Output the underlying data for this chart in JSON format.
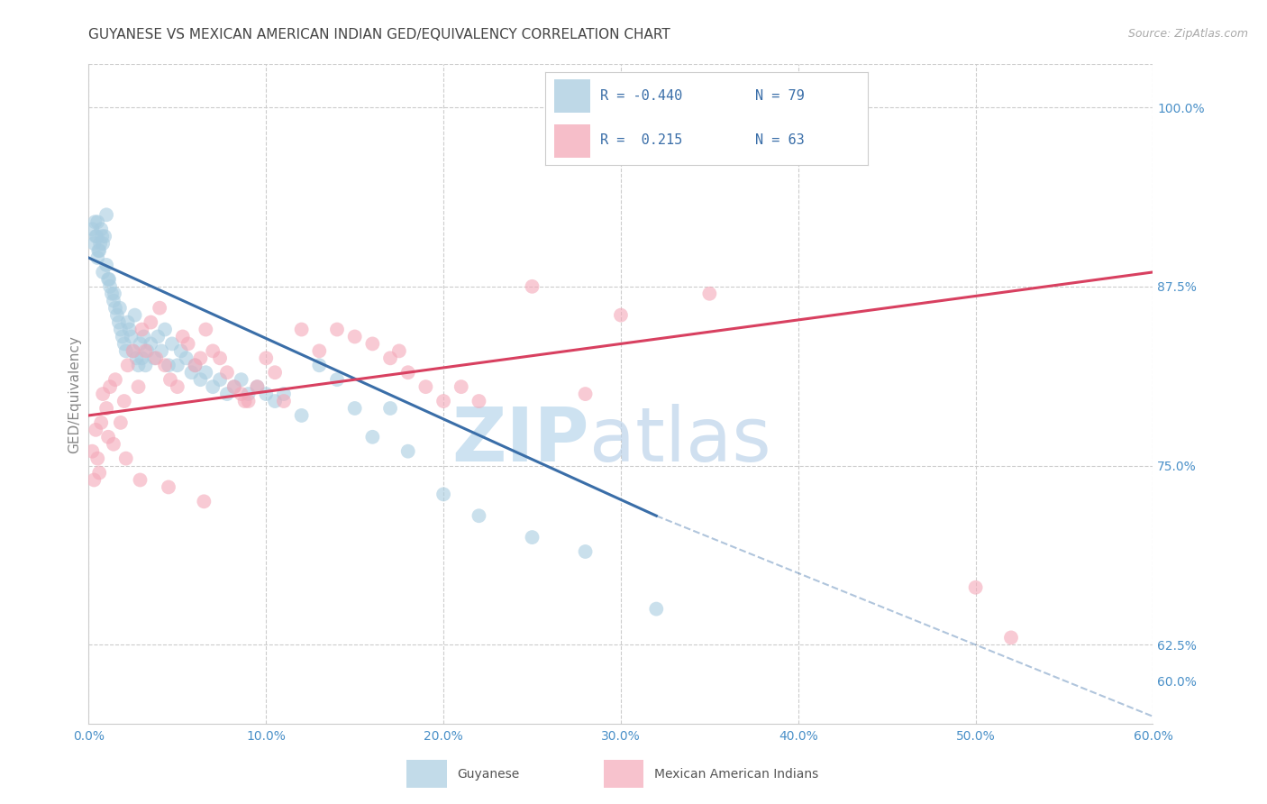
{
  "title": "GUYANESE VS MEXICAN AMERICAN INDIAN GED/EQUIVALENCY CORRELATION CHART",
  "source": "Source: ZipAtlas.com",
  "ylabel": "GED/Equivalency",
  "xlim": [
    0.0,
    60.0
  ],
  "ylim": [
    57.0,
    103.0
  ],
  "xtick_vals": [
    0,
    10,
    20,
    30,
    40,
    50,
    60
  ],
  "ytick_right_vals": [
    60.0,
    62.5,
    75.0,
    87.5,
    100.0
  ],
  "blue_color": "#a8cce0",
  "pink_color": "#f4a8b8",
  "blue_line_color": "#3a6ea8",
  "pink_line_color": "#d84060",
  "blue_scatter_x": [
    0.3,
    0.4,
    0.5,
    0.5,
    0.6,
    0.7,
    0.8,
    0.8,
    0.9,
    1.0,
    1.0,
    1.1,
    1.2,
    1.3,
    1.4,
    1.5,
    1.6,
    1.7,
    1.8,
    1.9,
    2.0,
    2.1,
    2.2,
    2.3,
    2.4,
    2.5,
    2.6,
    2.7,
    2.8,
    2.9,
    3.0,
    3.1,
    3.2,
    3.3,
    3.5,
    3.7,
    3.9,
    4.1,
    4.3,
    4.5,
    4.7,
    5.0,
    5.2,
    5.5,
    5.8,
    6.0,
    6.3,
    6.6,
    7.0,
    7.4,
    7.8,
    8.2,
    8.6,
    9.0,
    9.5,
    10.0,
    10.5,
    11.0,
    12.0,
    13.0,
    14.0,
    15.0,
    16.0,
    17.0,
    18.0,
    20.0,
    22.0,
    25.0,
    28.0,
    32.0,
    0.2,
    0.35,
    0.45,
    0.55,
    0.65,
    0.75,
    1.15,
    1.45,
    1.75
  ],
  "blue_scatter_y": [
    90.5,
    91.0,
    89.5,
    92.0,
    90.0,
    91.5,
    88.5,
    90.5,
    91.0,
    89.0,
    92.5,
    88.0,
    87.5,
    87.0,
    86.5,
    86.0,
    85.5,
    85.0,
    84.5,
    84.0,
    83.5,
    83.0,
    85.0,
    84.5,
    84.0,
    83.0,
    85.5,
    82.5,
    82.0,
    83.5,
    82.5,
    84.0,
    82.0,
    83.0,
    83.5,
    82.5,
    84.0,
    83.0,
    84.5,
    82.0,
    83.5,
    82.0,
    83.0,
    82.5,
    81.5,
    82.0,
    81.0,
    81.5,
    80.5,
    81.0,
    80.0,
    80.5,
    81.0,
    80.0,
    80.5,
    80.0,
    79.5,
    80.0,
    78.5,
    82.0,
    81.0,
    79.0,
    77.0,
    79.0,
    76.0,
    73.0,
    71.5,
    70.0,
    69.0,
    65.0,
    91.5,
    92.0,
    91.0,
    90.0,
    90.5,
    91.0,
    88.0,
    87.0,
    86.0
  ],
  "pink_scatter_x": [
    0.2,
    0.3,
    0.5,
    0.6,
    0.8,
    1.0,
    1.2,
    1.5,
    1.8,
    2.0,
    2.2,
    2.5,
    2.8,
    3.0,
    3.2,
    3.5,
    3.8,
    4.0,
    4.3,
    4.6,
    5.0,
    5.3,
    5.6,
    6.0,
    6.3,
    6.6,
    7.0,
    7.4,
    7.8,
    8.2,
    8.6,
    9.0,
    9.5,
    10.0,
    10.5,
    11.0,
    12.0,
    13.0,
    14.0,
    15.0,
    16.0,
    17.0,
    18.0,
    19.0,
    20.0,
    21.0,
    22.0,
    25.0,
    28.0,
    30.0,
    35.0,
    0.4,
    0.7,
    1.1,
    1.4,
    2.1,
    2.9,
    4.5,
    6.5,
    50.0,
    52.0,
    8.8,
    17.5
  ],
  "pink_scatter_y": [
    76.0,
    74.0,
    75.5,
    74.5,
    80.0,
    79.0,
    80.5,
    81.0,
    78.0,
    79.5,
    82.0,
    83.0,
    80.5,
    84.5,
    83.0,
    85.0,
    82.5,
    86.0,
    82.0,
    81.0,
    80.5,
    84.0,
    83.5,
    82.0,
    82.5,
    84.5,
    83.0,
    82.5,
    81.5,
    80.5,
    80.0,
    79.5,
    80.5,
    82.5,
    81.5,
    79.5,
    84.5,
    83.0,
    84.5,
    84.0,
    83.5,
    82.5,
    81.5,
    80.5,
    79.5,
    80.5,
    79.5,
    87.5,
    80.0,
    85.5,
    87.0,
    77.5,
    78.0,
    77.0,
    76.5,
    75.5,
    74.0,
    73.5,
    72.5,
    66.5,
    63.0,
    79.5,
    83.0
  ],
  "blue_line_x0": 0.0,
  "blue_line_y0": 89.5,
  "blue_line_x1": 32.0,
  "blue_line_y1": 71.5,
  "blue_dash_x0": 32.0,
  "blue_dash_y0": 71.5,
  "blue_dash_x1": 60.0,
  "blue_dash_y1": 57.5,
  "pink_line_x0": 0.0,
  "pink_line_y0": 78.5,
  "pink_line_x1": 60.0,
  "pink_line_y1": 88.5,
  "watermark_zip": "ZIP",
  "watermark_atlas": "atlas",
  "legend_R_blue": "R = -0.440",
  "legend_N_blue": "N = 79",
  "legend_R_pink": "R =  0.215",
  "legend_N_pink": "N = 63",
  "legend_label_blue": "Guyanese",
  "legend_label_pink": "Mexican American Indians",
  "title_fontsize": 11,
  "source_fontsize": 9,
  "tick_fontsize": 10,
  "ylabel_fontsize": 11,
  "background_color": "#ffffff",
  "grid_color": "#cccccc",
  "axis_tick_color": "#4a90c8",
  "title_color": "#444444"
}
